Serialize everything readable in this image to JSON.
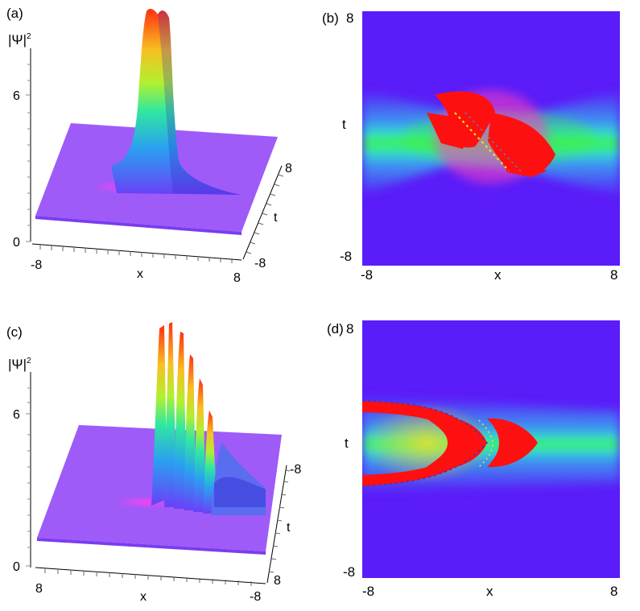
{
  "panels": [
    {
      "letter": "(a)",
      "type": "surface-3d",
      "zlabel": "|Ψ|",
      "zlabel_exp": "2",
      "z_ticks": [
        "6",
        "0"
      ],
      "x_ticks": [
        "-8",
        "8"
      ],
      "xlabel": "x",
      "t_ticks": [
        "8",
        "-8"
      ],
      "tlabel": "t"
    },
    {
      "letter": "(b)",
      "type": "density-map",
      "ylabel": "t",
      "y_ticks": [
        "8",
        "-8"
      ],
      "x_ticks": [
        "-8",
        "8"
      ],
      "xlabel": "x"
    },
    {
      "letter": "(c)",
      "type": "surface-3d",
      "zlabel": "|Ψ|",
      "zlabel_exp": "2",
      "z_ticks": [
        "6",
        "0"
      ],
      "x_ticks": [
        "8",
        "-8"
      ],
      "xlabel": "x",
      "t_ticks": [
        "-8",
        "8"
      ],
      "tlabel": "t"
    },
    {
      "letter": "(d)",
      "type": "density-map",
      "ylabel": "t",
      "y_ticks": [
        "8",
        "-8"
      ],
      "x_ticks": [
        "-8",
        "8"
      ],
      "xlabel": "x"
    }
  ],
  "colors": {
    "background_field": "#5a1cf8",
    "surface_base": "#9e5bf8",
    "peak_high": "#ff2a10",
    "mid": "#20f040",
    "cyan": "#20e8f0"
  }
}
